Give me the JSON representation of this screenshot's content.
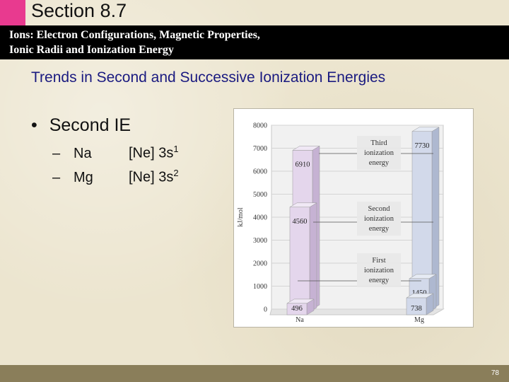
{
  "section_title": "Section 8.7",
  "header": {
    "line1": "Ions: Electron Configurations, Magnetic Properties,",
    "line2": "Ionic Radii and Ionization Energy"
  },
  "subtitle": "Trends in Second and Successive Ionization Energies",
  "bullet": "Second IE",
  "items": [
    {
      "dash": "–",
      "element": "Na",
      "config": "[Ne] 3s",
      "sup": "1"
    },
    {
      "dash": "–",
      "element": "Mg",
      "config": "[Ne] 3s",
      "sup": "2"
    }
  ],
  "colors": {
    "pink_tab": "#e83a8f",
    "header_bar": "#000000",
    "footer_bar": "#8a7e5a",
    "na_bars": "#e4d6ec",
    "mg_bars": "#d2d9ea",
    "subtitle_text": "#1a1a80"
  },
  "chart_data": {
    "type": "bar",
    "ylabel": "kJ/mol",
    "ylim": [
      0,
      8000
    ],
    "yticks": [
      "0",
      "1000",
      "2000",
      "3000",
      "4000",
      "5000",
      "6000",
      "7000",
      "8000"
    ],
    "categories": [
      "Na",
      "Mg"
    ],
    "series": [
      {
        "name": "First ionization energy",
        "values": [
          496,
          738
        ],
        "labels": [
          "496",
          "738"
        ]
      },
      {
        "name": "Second ionization energy",
        "values": [
          4560,
          1450
        ],
        "labels": [
          "4560",
          "1450"
        ]
      },
      {
        "name": "Third ionization energy",
        "values": [
          6910,
          7730
        ],
        "labels": [
          "6910",
          "7730"
        ]
      }
    ],
    "annotations": [
      {
        "lines": [
          "Third",
          "ionization",
          "energy"
        ]
      },
      {
        "lines": [
          "Second",
          "ionization",
          "energy"
        ]
      },
      {
        "lines": [
          "First",
          "ionization",
          "energy"
        ]
      }
    ],
    "grid": true,
    "style": "3d-stacked"
  },
  "page_number": "78"
}
